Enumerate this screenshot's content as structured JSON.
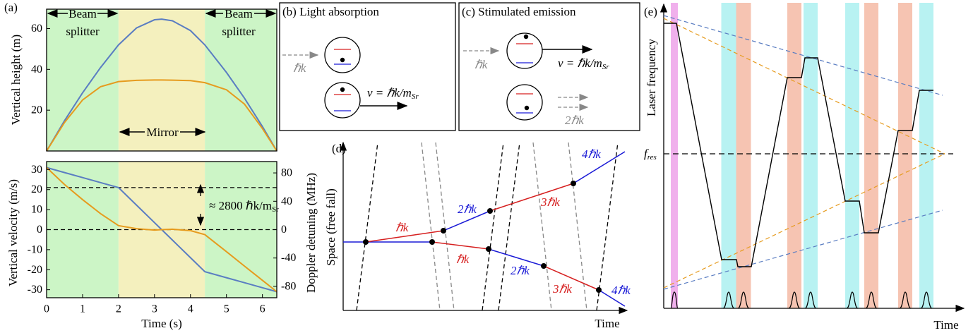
{
  "chart_data": [
    {
      "type": "line",
      "panel_label": "(a)",
      "y_label": "Vertical height (m)",
      "x": [
        0,
        0.5,
        1,
        1.5,
        2,
        2.5,
        3,
        3.2,
        3.5,
        4,
        4.4,
        5,
        5.5,
        6,
        6.4
      ],
      "series": [
        {
          "color": "#5a7dc2",
          "values": [
            0,
            14.9,
            28.5,
            40.9,
            52,
            60.3,
            64.3,
            64.6,
            63.8,
            59,
            52,
            38.5,
            25.9,
            12,
            0
          ]
        },
        {
          "color": "#e69b1e",
          "values": [
            0,
            14,
            25,
            31.5,
            34,
            34.6,
            34.8,
            34.8,
            34.7,
            34.5,
            33.5,
            30,
            23,
            11,
            0
          ]
        }
      ],
      "xlim": [
        0,
        6.4
      ],
      "ylim": [
        0,
        69.5
      ],
      "yticks": [
        20,
        40,
        60
      ],
      "regions": [
        {
          "x": [
            0,
            2
          ],
          "color": "#ccf5c6"
        },
        {
          "x": [
            2,
            4.4
          ],
          "color": "#f4f0be"
        },
        {
          "x": [
            4.4,
            6.4
          ],
          "color": "#ccf5c6"
        }
      ],
      "annotations": {
        "beam_splitter": [
          "Beam",
          "splitter"
        ],
        "mirror": "Mirror"
      }
    },
    {
      "type": "line",
      "y_label": "Vertical velocity (m/s)",
      "y2_label": "Doppler detuning (MHz)",
      "x_label": "Time (s)",
      "x": [
        0,
        0.5,
        1,
        1.5,
        2,
        2.5,
        3,
        3.2,
        3.5,
        4,
        4.4,
        5,
        5.5,
        6,
        6.4
      ],
      "series": [
        {
          "color": "#5a7dc2",
          "values": [
            31,
            28.5,
            26,
            23.5,
            21,
            12.25,
            3.5,
            0,
            -5.25,
            -14,
            -21,
            -24,
            -26.5,
            -29,
            -31
          ]
        },
        {
          "color": "#e69b1e",
          "values": [
            31,
            22.5,
            15,
            8,
            2,
            0.5,
            -0.2,
            0,
            0.2,
            -0.5,
            -2.5,
            -11,
            -18.2,
            -25.3,
            -31
          ]
        }
      ],
      "xlim": [
        0,
        6.4
      ],
      "xticks": [
        0,
        1,
        2,
        3,
        4,
        5,
        6
      ],
      "ylim": [
        -34,
        34
      ],
      "yticks": [
        -30,
        -20,
        -10,
        0,
        10,
        20,
        30
      ],
      "y2lim": [
        -96,
        96
      ],
      "y2ticks": [
        -80,
        -40,
        0,
        40,
        80
      ],
      "regions": [
        {
          "x": [
            0,
            2
          ],
          "color": "#ccf5c6"
        },
        {
          "x": [
            2,
            4.4
          ],
          "color": "#f4f0be"
        },
        {
          "x": [
            4.4,
            6.4
          ],
          "color": "#ccf5c6"
        }
      ],
      "hlines": [
        21,
        0
      ],
      "annotations": {
        "recoil": {
          "text": "≈ 2800 ℏk/m",
          "sub": "Sr"
        }
      }
    }
  ],
  "diagrams": {
    "b": {
      "label": "(b) Light absorption",
      "momentum_in": "ℏk",
      "velocity": {
        "text": "v = ℏk/m",
        "sub": "Sr"
      }
    },
    "c": {
      "label": "(c) Stimulated emission",
      "momentum_in": "ℏk",
      "velocity": {
        "text": "v = ℏk/m",
        "sub": "Sr"
      },
      "momentum_out": "2ℏk"
    },
    "d": {
      "label": "(d)",
      "y_label": "Space (free fall)",
      "x_label": "Time",
      "momenta": [
        "ℏk",
        "2ℏk",
        "3ℏk",
        "4ℏk"
      ]
    },
    "e": {
      "label": "(e)",
      "y_label": "Laser frequency",
      "x_label": "Time",
      "f_res": {
        "text": "f",
        "sub": "res"
      }
    }
  }
}
